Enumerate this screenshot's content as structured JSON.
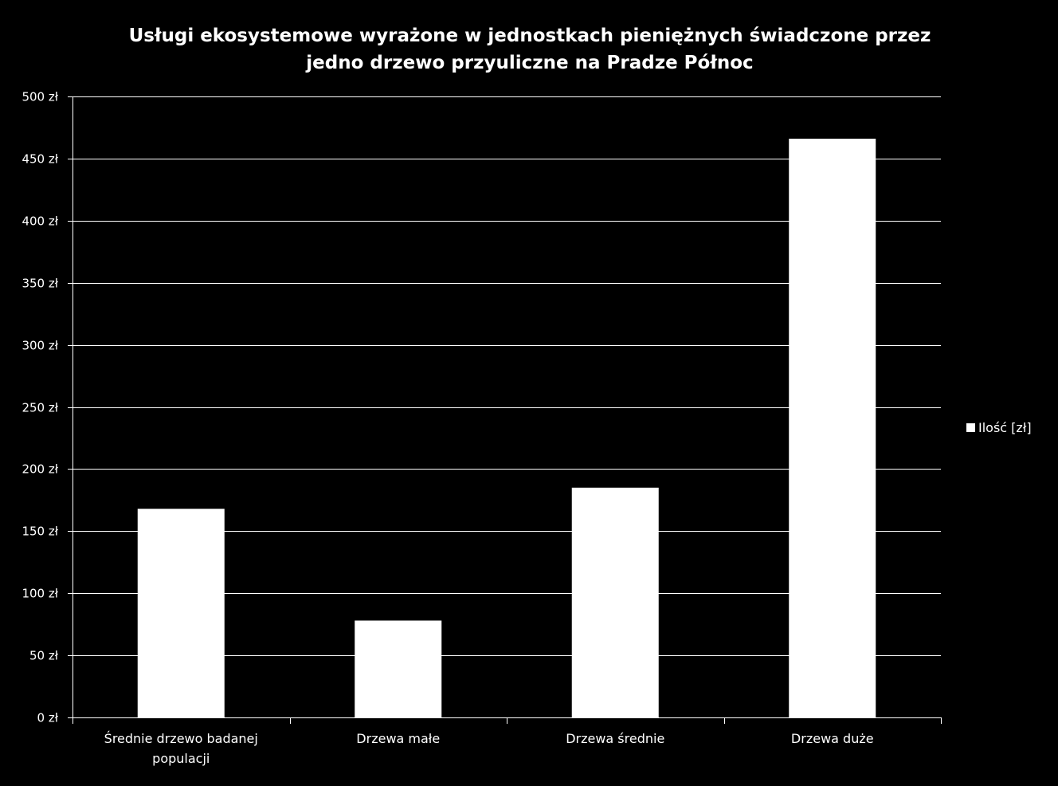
{
  "chart_data": {
    "type": "bar",
    "title": "Usługi ekosystemowe wyrażone w jednostkach pieniężnych świadczone przez jedno drzewo przyuliczne  na Pradze Północ",
    "xlabel": "",
    "ylabel": "",
    "categories": [
      [
        "Średnie drzewo badanej",
        "populacji"
      ],
      [
        "Drzewa małe"
      ],
      [
        "Drzewa średnie"
      ],
      [
        "Drzewa duże"
      ]
    ],
    "series": [
      {
        "name": "Ilość [zł]",
        "values": [
          168,
          78,
          185,
          466
        ],
        "color": "#ffffff"
      }
    ],
    "ylim": [
      0,
      500
    ],
    "yticks": [
      "0 zł",
      "50 zł",
      "100 zł",
      "150 zł",
      "200 zł",
      "250 zł",
      "300 zł",
      "350 zł",
      "400 zł",
      "450 zł",
      "500 zł"
    ],
    "ytick_values": [
      0,
      50,
      100,
      150,
      200,
      250,
      300,
      350,
      400,
      450,
      500
    ],
    "grid": true,
    "legend_position": "right",
    "background_color": "#000000",
    "foreground_color": "#ffffff"
  }
}
